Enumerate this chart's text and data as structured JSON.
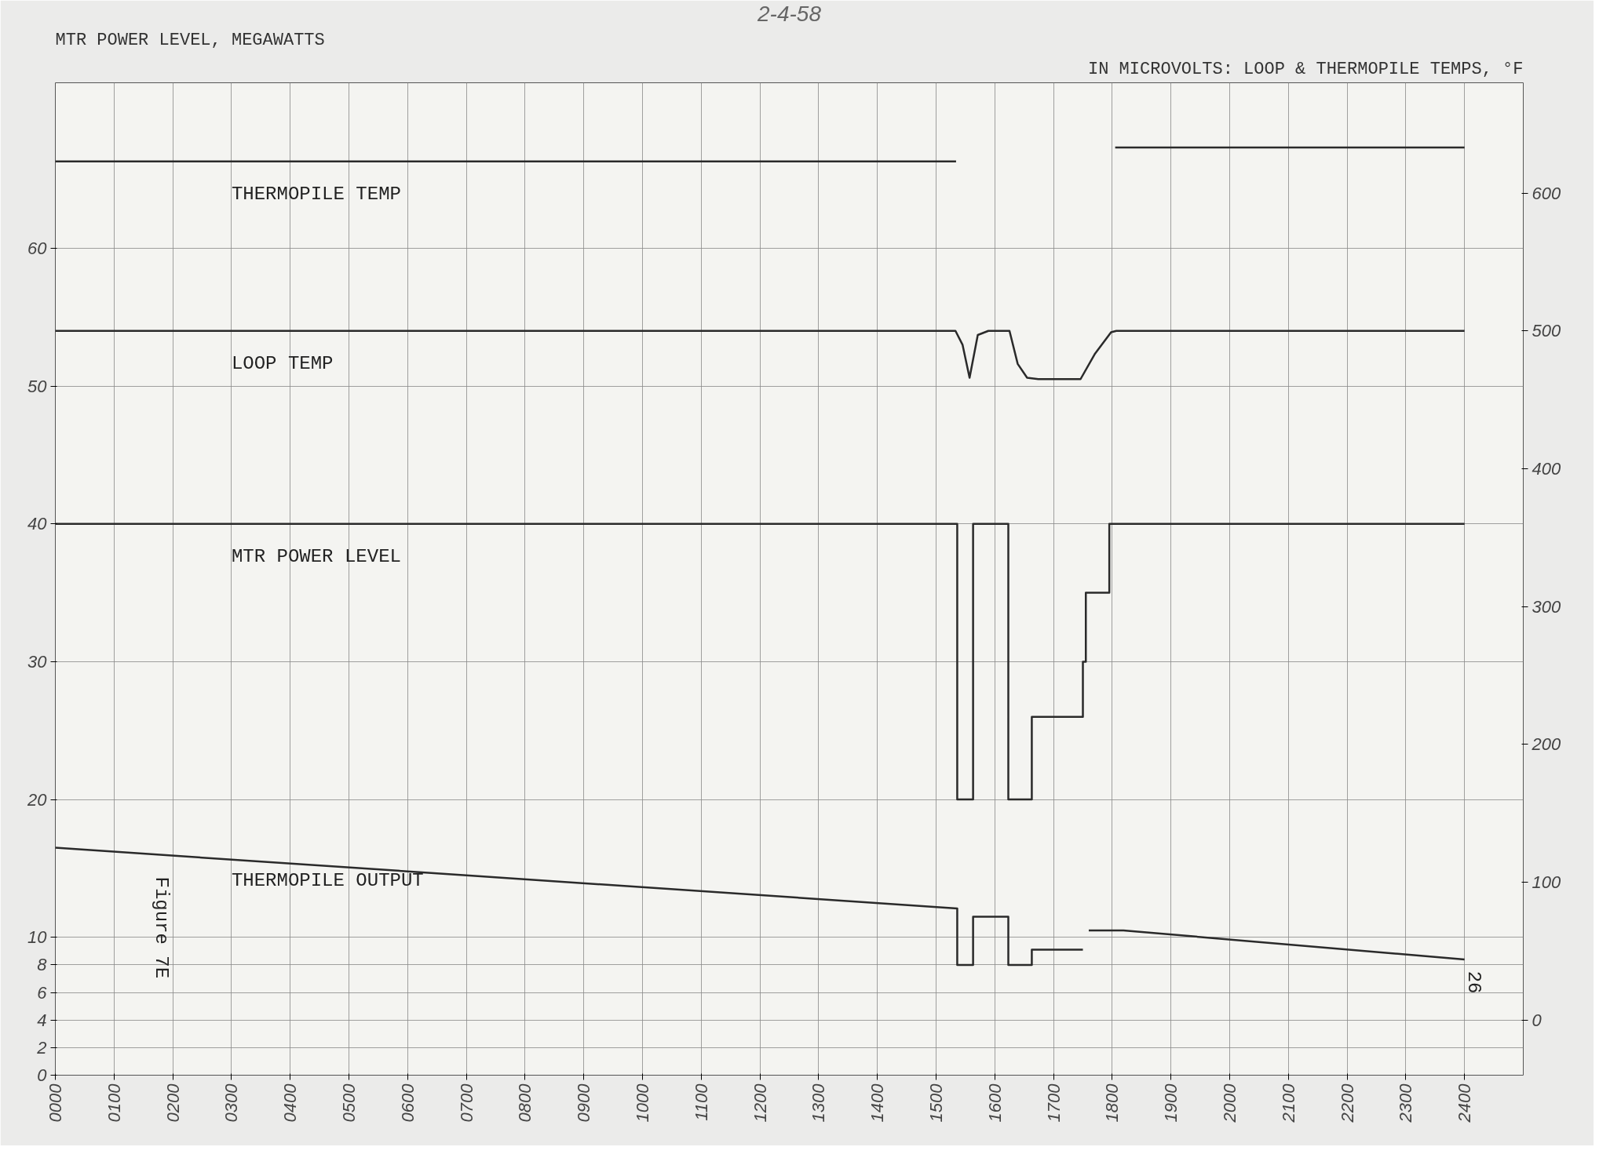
{
  "chart_data": {
    "type": "line",
    "title": "2-4-58",
    "ylabel": "MTR POWER LEVEL, MEGAWATTS",
    "y2label": "IN MICROVOLTS: LOOP & THERMOPILE TEMPS, °F",
    "annotations": [
      "Figure 7E",
      "26"
    ],
    "xlim": [
      0,
      2500
    ],
    "ylim": [
      0,
      72
    ],
    "y2lim": [
      -40,
      680
    ],
    "xticks": [
      {
        "value": 0,
        "label": "0000"
      },
      {
        "value": 100,
        "label": "0100"
      },
      {
        "value": 200,
        "label": "0200"
      },
      {
        "value": 300,
        "label": "0300"
      },
      {
        "value": 400,
        "label": "0400"
      },
      {
        "value": 500,
        "label": "0500"
      },
      {
        "value": 600,
        "label": "0600"
      },
      {
        "value": 700,
        "label": "0700"
      },
      {
        "value": 800,
        "label": "0800"
      },
      {
        "value": 900,
        "label": "0900"
      },
      1000,
      1100,
      1200,
      1300,
      1400,
      1500,
      1600,
      1700,
      1800,
      1900,
      2000,
      2100,
      2200,
      2300,
      2400
    ],
    "yticks": [
      0,
      2,
      4,
      6,
      8,
      10,
      20,
      30,
      40,
      50,
      60
    ],
    "y2ticks": [
      0,
      100,
      200,
      300,
      400,
      500,
      600
    ],
    "grid": true,
    "series": [
      {
        "name": "THERMOPILE TEMP",
        "color": "#2a2a2a",
        "axis": "y2",
        "x": [
          0,
          1534,
          1670,
          1805,
          2400
        ],
        "values": [
          623,
          623,
          null,
          633,
          633
        ]
      },
      {
        "name": "LOOP TEMP",
        "color": "#2a2a2a",
        "axis": "y2",
        "x": [
          0,
          1533,
          1545,
          1557,
          1571,
          1589,
          1625,
          1639,
          1655,
          1674,
          1746,
          1770,
          1798,
          1807,
          2400
        ],
        "values": [
          500,
          500,
          490,
          466,
          497,
          500,
          500,
          476,
          466,
          465,
          465,
          483,
          499,
          500,
          500
        ]
      },
      {
        "name": "MTR POWER LEVEL",
        "color": "#2a2a2a",
        "type": "step",
        "x": [
          0,
          1536,
          1563,
          1623,
          1663,
          1750,
          1755,
          1795,
          2400
        ],
        "values": [
          40,
          20,
          40,
          20,
          26,
          30,
          35,
          40,
          40
        ]
      },
      {
        "name": "THERMOPILE OUTPUT",
        "color": "#2a2a2a",
        "axis": "y2",
        "x": [
          0,
          700,
          1536,
          1536,
          1563,
          1563,
          1623,
          1623,
          1663,
          1663,
          1750,
          1755,
          1760,
          1819,
          2400
        ],
        "values": [
          125,
          105,
          81,
          40,
          40,
          75,
          75,
          40,
          40,
          51,
          51,
          null,
          65,
          65,
          44
        ]
      }
    ]
  }
}
